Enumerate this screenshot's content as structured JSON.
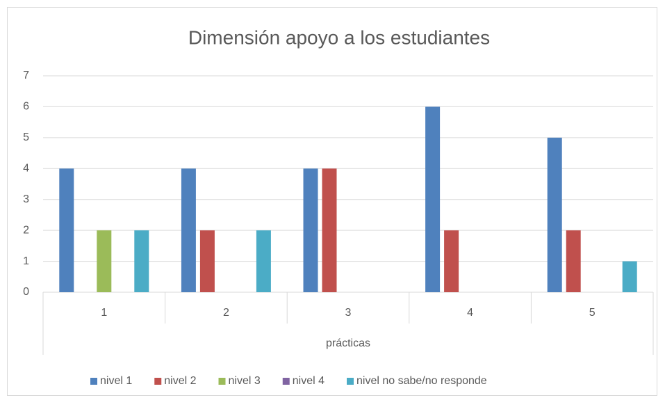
{
  "chart_data": {
    "type": "bar",
    "title": "Dimensión apoyo a los estudiantes",
    "x_label": "prácticas",
    "categories": [
      "1",
      "2",
      "3",
      "4",
      "5"
    ],
    "series": [
      {
        "name": "nivel 1",
        "color": "#4f81bd",
        "values": [
          4,
          4,
          4,
          6,
          5
        ]
      },
      {
        "name": "nivel 2",
        "color": "#c0504d",
        "values": [
          0,
          2,
          4,
          2,
          2
        ]
      },
      {
        "name": "nivel 3",
        "color": "#9bbb59",
        "values": [
          2,
          0,
          0,
          0,
          0
        ]
      },
      {
        "name": "nivel 4",
        "color": "#8064a2",
        "values": [
          0,
          0,
          0,
          0,
          0
        ]
      },
      {
        "name": "nivel no sabe/no responde",
        "color": "#4bacc6",
        "values": [
          2,
          2,
          0,
          0,
          1
        ]
      }
    ],
    "ylim": [
      0,
      7
    ],
    "yticks": [
      0,
      1,
      2,
      3,
      4,
      5,
      6,
      7
    ],
    "grid": true,
    "legend": "bottom"
  }
}
